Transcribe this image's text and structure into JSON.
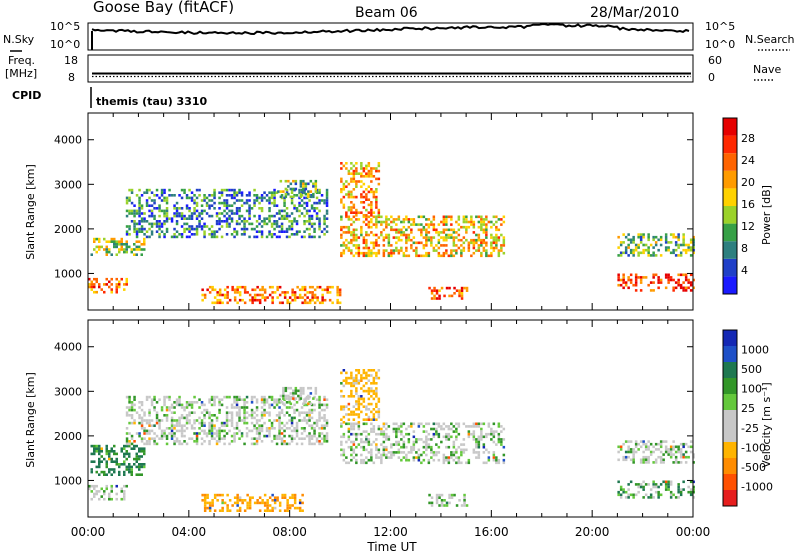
{
  "header": {
    "station": "Goose Bay (fitACF)",
    "beam": "Beam 06",
    "date": "28/Mar/2010"
  },
  "noise_panel": {
    "left_label": "N.Sky",
    "left_ticks": [
      "10^5",
      "10^0"
    ],
    "right_ticks": [
      "10^5",
      "10^0"
    ],
    "right_label": "N.Search"
  },
  "freq_panel": {
    "left_label_line1": "Freq.",
    "left_label_line2": "[MHz]",
    "left_ticks": [
      "18",
      "8"
    ],
    "right_ticks": [
      "60",
      "0"
    ],
    "right_label": "Nave"
  },
  "cpid_panel": {
    "label": "CPID",
    "program": "themis (tau) 3310"
  },
  "axes": {
    "ylabel": "Slant Range [km]",
    "xlabel": "Time UT",
    "y_ticks": [
      "1000",
      "2000",
      "3000",
      "4000"
    ],
    "x_ticks": [
      "00:00",
      "04:00",
      "08:00",
      "12:00",
      "16:00",
      "20:00",
      "00:00"
    ]
  },
  "colorbars": {
    "power": {
      "label": "Power [dB]",
      "ticks": [
        "4",
        "8",
        "12",
        "16",
        "20",
        "24",
        "28"
      ],
      "colors": [
        "#1a1aff",
        "#2040c8",
        "#2d7f7f",
        "#36a046",
        "#9bd22a",
        "#ffd200",
        "#ff9b00",
        "#ff6400",
        "#ff2800",
        "#e60000"
      ]
    },
    "velocity": {
      "label": "Velocity [m s⁻¹]",
      "ticks": [
        "1000",
        "500",
        "100",
        "25",
        "-25",
        "-100",
        "-500",
        "-1000"
      ],
      "colors": [
        "#1428b4",
        "#1e50c8",
        "#1e7850",
        "#329628",
        "#64c83c",
        "#c8c8c8",
        "#c8c8c8",
        "#ffb400",
        "#ff8c00",
        "#ff5000",
        "#e61e1e"
      ]
    }
  },
  "chart_data": [
    {
      "type": "heatmap",
      "title": "Power [dB]",
      "xlabel": "Time UT",
      "ylabel": "Slant Range [km]",
      "xlim": [
        0,
        24
      ],
      "ylim": [
        180,
        4600
      ],
      "colorbar_range": [
        0,
        30
      ],
      "regions": [
        {
          "t0": 0.0,
          "t1": 1.5,
          "r0": 600,
          "r1": 900,
          "value": 22
        },
        {
          "t0": 0.1,
          "t1": 2.2,
          "r0": 1400,
          "r1": 1800,
          "value": 14
        },
        {
          "t0": 1.5,
          "t1": 9.5,
          "r0": 1800,
          "r1": 2900,
          "value": 8
        },
        {
          "t0": 7.5,
          "t1": 9.0,
          "r0": 2700,
          "r1": 3100,
          "value": 12
        },
        {
          "t0": 4.5,
          "t1": 10.0,
          "r0": 320,
          "r1": 720,
          "value": 22
        },
        {
          "t0": 10.0,
          "t1": 16.5,
          "r0": 1400,
          "r1": 2300,
          "value": 18
        },
        {
          "t0": 10.0,
          "t1": 11.5,
          "r0": 2300,
          "r1": 3500,
          "value": 20
        },
        {
          "t0": 13.5,
          "t1": 15.0,
          "r0": 420,
          "r1": 700,
          "value": 24
        },
        {
          "t0": 21.0,
          "t1": 24.0,
          "r0": 1400,
          "r1": 1900,
          "value": 12
        },
        {
          "t0": 21.0,
          "t1": 24.0,
          "r0": 600,
          "r1": 1000,
          "value": 26
        }
      ]
    },
    {
      "type": "heatmap",
      "title": "Velocity [m s⁻¹]",
      "xlabel": "Time UT",
      "ylabel": "Slant Range [km]",
      "xlim": [
        0,
        24
      ],
      "ylim": [
        180,
        4600
      ],
      "colorbar_range": [
        -1000,
        1000
      ],
      "regions": [
        {
          "t0": 0.0,
          "t1": 1.5,
          "r0": 600,
          "r1": 900,
          "value": 0
        },
        {
          "t0": 0.1,
          "t1": 2.2,
          "r0": 1100,
          "r1": 1800,
          "value": 120
        },
        {
          "t0": 1.5,
          "t1": 9.5,
          "r0": 1800,
          "r1": 2900,
          "value": 0
        },
        {
          "t0": 7.5,
          "t1": 9.0,
          "r0": 2700,
          "r1": 3100,
          "value": 0
        },
        {
          "t0": 4.5,
          "t1": 8.5,
          "r0": 300,
          "r1": 700,
          "value": -300
        },
        {
          "t0": 10.0,
          "t1": 16.5,
          "r0": 1400,
          "r1": 2300,
          "value": 0
        },
        {
          "t0": 10.0,
          "t1": 11.5,
          "r0": 2300,
          "r1": 3500,
          "value": -150
        },
        {
          "t0": 13.5,
          "t1": 15.0,
          "r0": 420,
          "r1": 700,
          "value": 0
        },
        {
          "t0": 21.0,
          "t1": 24.0,
          "r0": 1400,
          "r1": 1900,
          "value": 0
        },
        {
          "t0": 21.0,
          "t1": 24.0,
          "r0": 600,
          "r1": 1000,
          "value": 60
        }
      ]
    }
  ]
}
